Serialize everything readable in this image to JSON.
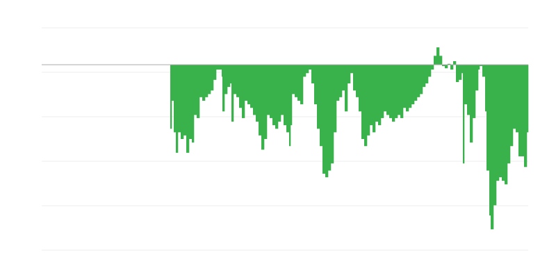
{
  "chart_data": {
    "type": "bar",
    "title": "",
    "xlabel": "",
    "ylabel": "",
    "xlim": [
      0,
      350
    ],
    "ylim": [
      -41.7,
      8.3
    ],
    "gridlines_y": [
      8.3,
      -1.7,
      -11.7,
      -21.7,
      -31.7,
      -41.7
    ],
    "grid": true,
    "zero_line": true,
    "colors": {
      "bar": "#39b24c",
      "grid": "#ececec",
      "zero_line": "#aaaaaa"
    },
    "points": [
      [
        92.5,
        -14.4
      ],
      [
        93.5,
        -8.1
      ],
      [
        95,
        -15.2
      ],
      [
        96.5,
        -19.8
      ],
      [
        98,
        -15.2
      ],
      [
        100,
        -16.7
      ],
      [
        102,
        -15.9
      ],
      [
        104,
        -19.8
      ],
      [
        106,
        -16.7
      ],
      [
        108,
        -17.5
      ],
      [
        109.5,
        -11.3
      ],
      [
        111.5,
        -12.0
      ],
      [
        113.5,
        -7.3
      ],
      [
        115.5,
        -8.1
      ],
      [
        117.5,
        -7.3
      ],
      [
        119.5,
        -6.6
      ],
      [
        121.5,
        -5.8
      ],
      [
        123.5,
        -3.4
      ],
      [
        125.5,
        -1.1
      ],
      [
        127.5,
        -1.1
      ],
      [
        129.5,
        -2.7
      ],
      [
        130,
        -10.5
      ],
      [
        131.5,
        -6.6
      ],
      [
        133.5,
        -5.0
      ],
      [
        135.5,
        -4.2
      ],
      [
        136.5,
        -12.8
      ],
      [
        138,
        -6.6
      ],
      [
        140,
        -7.3
      ],
      [
        142,
        -9.7
      ],
      [
        144,
        -12.0
      ],
      [
        146,
        -8.1
      ],
      [
        148,
        -8.9
      ],
      [
        150,
        -9.7
      ],
      [
        152,
        -11.3
      ],
      [
        154,
        -12.8
      ],
      [
        156,
        -15.9
      ],
      [
        158,
        -19.1
      ],
      [
        160,
        -16.7
      ],
      [
        162,
        -11.3
      ],
      [
        164,
        -12.0
      ],
      [
        166,
        -13.6
      ],
      [
        168,
        -14.4
      ],
      [
        170,
        -12.8
      ],
      [
        172,
        -11.3
      ],
      [
        174,
        -13.6
      ],
      [
        176,
        -15.2
      ],
      [
        178,
        -18.3
      ],
      [
        179,
        -13.6
      ],
      [
        180,
        -6.6
      ],
      [
        182,
        -7.3
      ],
      [
        184,
        -8.1
      ],
      [
        186,
        -8.9
      ],
      [
        188,
        -2.7
      ],
      [
        190,
        -1.9
      ],
      [
        192,
        -1.1
      ],
      [
        194,
        -4.2
      ],
      [
        196,
        -8.9
      ],
      [
        198,
        -14.4
      ],
      [
        200,
        -18.3
      ],
      [
        202,
        -24.5
      ],
      [
        204,
        -25.3
      ],
      [
        206,
        -23.8
      ],
      [
        208,
        -22.2
      ],
      [
        210,
        -15.2
      ],
      [
        212,
        -8.1
      ],
      [
        214,
        -7.3
      ],
      [
        216,
        -5.8
      ],
      [
        218,
        -10.5
      ],
      [
        220,
        -4.2
      ],
      [
        222,
        -1.9
      ],
      [
        224,
        -5.8
      ],
      [
        226,
        -7.3
      ],
      [
        228,
        -10.5
      ],
      [
        230,
        -16.7
      ],
      [
        232,
        -18.3
      ],
      [
        234,
        -15.9
      ],
      [
        236,
        -13.6
      ],
      [
        238,
        -15.2
      ],
      [
        240,
        -12.8
      ],
      [
        242,
        -13.6
      ],
      [
        244,
        -12.0
      ],
      [
        246,
        -10.5
      ],
      [
        248,
        -11.3
      ],
      [
        250,
        -12.0
      ],
      [
        252,
        -12.8
      ],
      [
        254,
        -12.0
      ],
      [
        256,
        -11.3
      ],
      [
        258,
        -12.0
      ],
      [
        260,
        -9.7
      ],
      [
        262,
        -10.5
      ],
      [
        264,
        -9.7
      ],
      [
        266,
        -8.9
      ],
      [
        268,
        -8.1
      ],
      [
        270,
        -7.3
      ],
      [
        272,
        -6.6
      ],
      [
        274,
        -5.0
      ],
      [
        276,
        -4.2
      ],
      [
        278,
        -2.7
      ],
      [
        280,
        -1.1
      ],
      [
        282,
        2.0
      ],
      [
        284,
        3.9
      ],
      [
        286,
        2.0
      ],
      [
        288,
        -0.3
      ],
      [
        290,
        -0.8
      ],
      [
        292,
        0.2
      ],
      [
        294,
        -1.1
      ],
      [
        296,
        0.8
      ],
      [
        298,
        -3.9
      ],
      [
        300,
        -3.4
      ],
      [
        302,
        -1.9
      ],
      [
        303,
        -22.2
      ],
      [
        304,
        -8.9
      ],
      [
        306,
        -11.3
      ],
      [
        308,
        -17.5
      ],
      [
        310,
        -12.0
      ],
      [
        312,
        -5.8
      ],
      [
        314,
        -1.1
      ],
      [
        315,
        -0.3
      ],
      [
        317,
        -2.7
      ],
      [
        319,
        -10.5
      ],
      [
        320,
        -23.8
      ],
      [
        322,
        -33.9
      ],
      [
        323,
        -37.0
      ],
      [
        325,
        -31.6
      ],
      [
        327,
        -26.1
      ],
      [
        329,
        -25.3
      ],
      [
        331,
        -26.1
      ],
      [
        333,
        -26.9
      ],
      [
        335,
        -22.2
      ],
      [
        337,
        -18.3
      ],
      [
        339,
        -14.4
      ],
      [
        341,
        -15.2
      ],
      [
        343,
        -20.6
      ],
      [
        345,
        -20.6
      ],
      [
        347,
        -23.0
      ],
      [
        349,
        -15.2
      ]
    ]
  }
}
